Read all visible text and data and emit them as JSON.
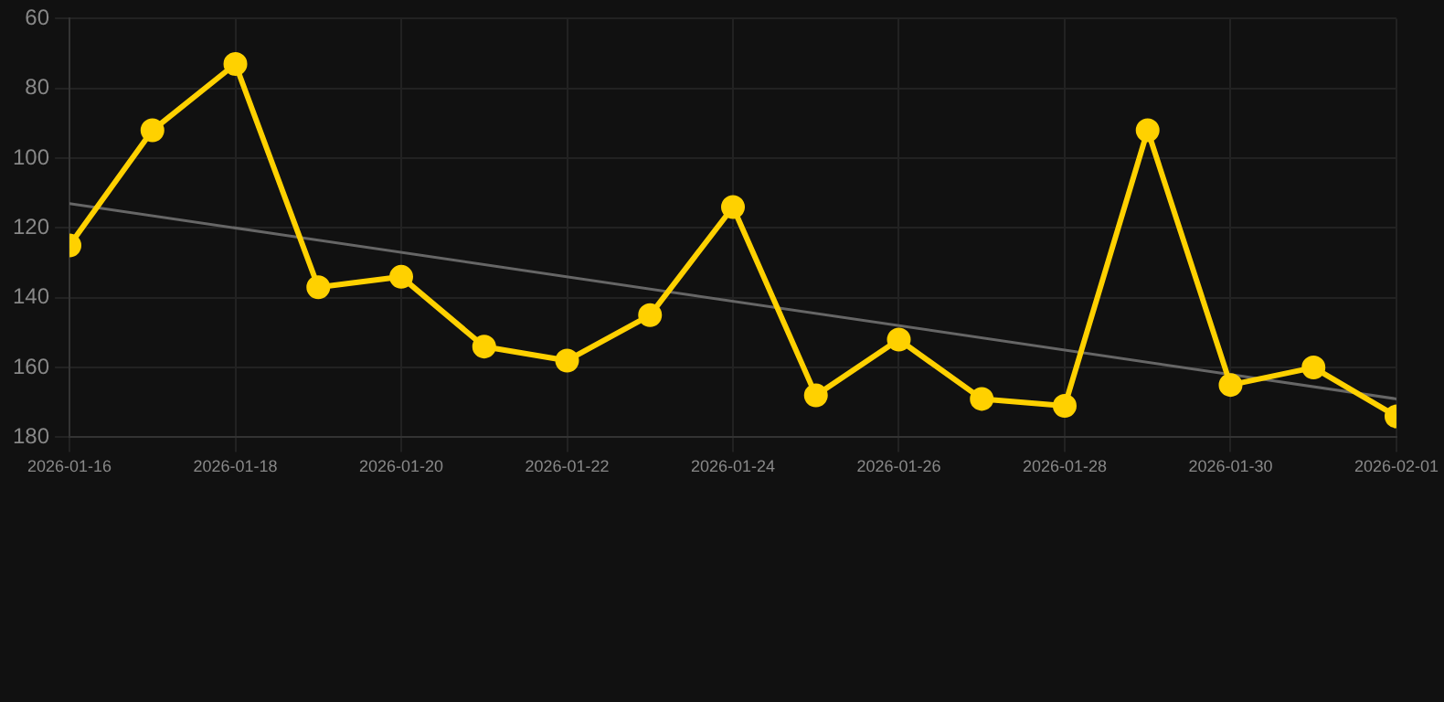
{
  "chart_data": {
    "type": "line",
    "x": [
      "2026-01-16",
      "2026-01-17",
      "2026-01-18",
      "2026-01-19",
      "2026-01-20",
      "2026-01-21",
      "2026-01-22",
      "2026-01-23",
      "2026-01-24",
      "2026-01-25",
      "2026-01-26",
      "2026-01-27",
      "2026-01-28",
      "2026-01-29",
      "2026-01-30",
      "2026-01-31",
      "2026-02-01"
    ],
    "series": [
      {
        "color": "#ffd100",
        "marker": "circle",
        "values": [
          125,
          92,
          73,
          137,
          134,
          154,
          158,
          145,
          114,
          168,
          152,
          169,
          171,
          92,
          165,
          160,
          174
        ]
      },
      {
        "type": "line",
        "color": "#666666",
        "marker": "none",
        "x": [
          "2026-01-16",
          "2026-02-01"
        ],
        "values": [
          113,
          169
        ]
      }
    ],
    "xlim": [
      "2026-01-16",
      "2026-02-01"
    ],
    "xticks": [
      "2026-01-16",
      "2026-01-18",
      "2026-01-20",
      "2026-01-22",
      "2026-01-24",
      "2026-01-26",
      "2026-01-28",
      "2026-01-30",
      "2026-02-01"
    ],
    "ylim": [
      180,
      60
    ],
    "yticks": [
      60,
      80,
      100,
      120,
      140,
      160,
      180
    ],
    "grid": true,
    "legend": false
  }
}
